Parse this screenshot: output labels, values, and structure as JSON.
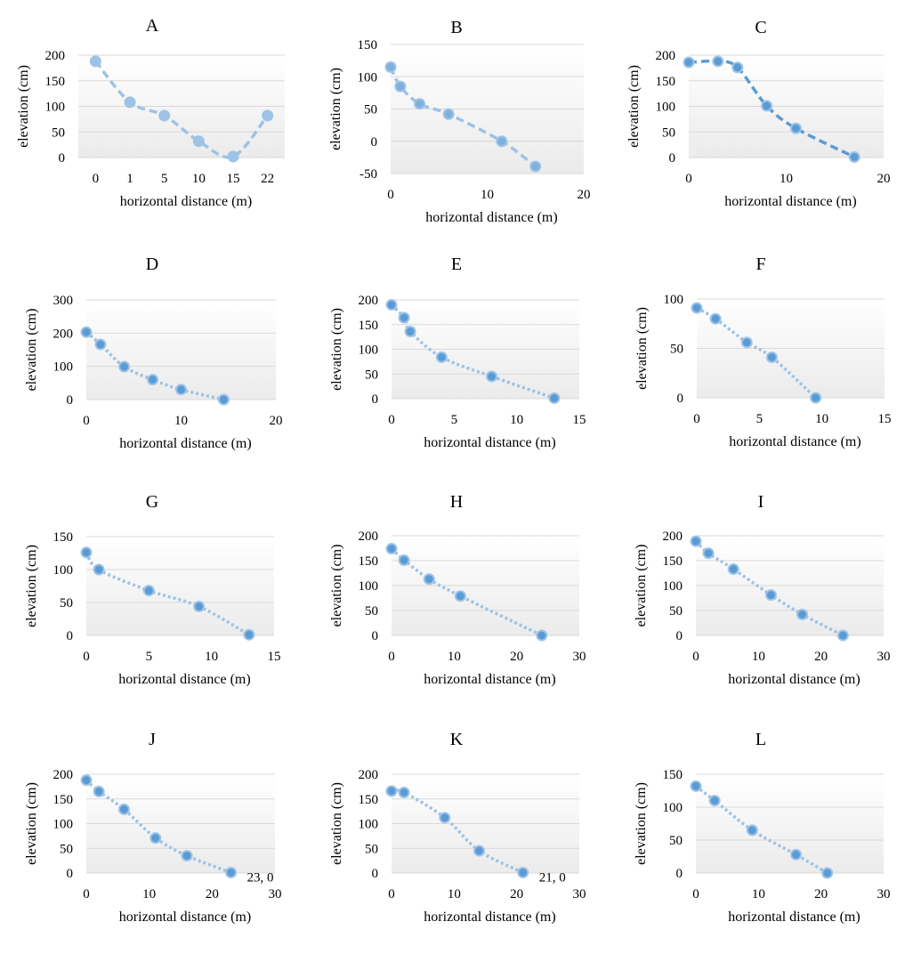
{
  "colors": {
    "series_dark": "#5b9bd5",
    "series_light": "#9dc3e6",
    "line_light": "#9dc3e6",
    "grid": "#d9d9d9",
    "plot_bg_top": "#ffffff",
    "plot_bg_bottom": "#ebebeb"
  },
  "chart_data": [
    {
      "id": "A",
      "type": "line",
      "title": "A",
      "xlabel": "horizontal  distance (m)",
      "ylabel": "elevation  (cm)",
      "x_mode": "category",
      "categories": [
        "0",
        "1",
        "5",
        "10",
        "15",
        "22"
      ],
      "series": [
        {
          "values": [
            188,
            108,
            82,
            32,
            2,
            82
          ]
        }
      ],
      "ylim": [
        0,
        200
      ],
      "yticks": [
        0,
        50,
        100,
        150,
        200
      ],
      "line_style": "dashed",
      "marker_style": "light",
      "grid": true
    },
    {
      "id": "B",
      "type": "scatter",
      "title": "B",
      "xlabel": "horizontal  distance (m)",
      "ylabel": "elevation  (cm)",
      "x_mode": "linear",
      "xlim": [
        0,
        20
      ],
      "xticks": [
        0,
        10,
        20
      ],
      "series": [
        {
          "x": [
            0,
            1,
            3,
            6,
            11.5,
            15
          ],
          "y": [
            115,
            85,
            58,
            42,
            0,
            -39
          ]
        }
      ],
      "ylim": [
        -50,
        150
      ],
      "yticks": [
        -50,
        0,
        50,
        100,
        150
      ],
      "line_style": "dashed",
      "marker_style": "mid",
      "grid": true
    },
    {
      "id": "C",
      "type": "scatter",
      "title": "C",
      "xlabel": "horizontal  distance (m)",
      "ylabel": "elevation  (cm)",
      "x_mode": "linear",
      "xlim": [
        0,
        20
      ],
      "xticks": [
        0,
        10,
        20
      ],
      "series": [
        {
          "x": [
            0,
            3,
            5,
            8,
            11,
            17
          ],
          "y": [
            186,
            188,
            176,
            101,
            57,
            1
          ]
        }
      ],
      "ylim": [
        0,
        200
      ],
      "yticks": [
        0,
        50,
        100,
        150,
        200
      ],
      "line_style": "dashed",
      "marker_style": "dark",
      "grid": true
    },
    {
      "id": "D",
      "type": "scatter",
      "title": "D",
      "xlabel": "horizontal  distance (m)",
      "ylabel": "elevation  (cm)",
      "x_mode": "linear",
      "xlim": [
        0,
        20
      ],
      "xticks": [
        0,
        10,
        20
      ],
      "series": [
        {
          "x": [
            0,
            1.5,
            4,
            7,
            10,
            14.5
          ],
          "y": [
            203,
            166,
            99,
            60,
            30,
            0
          ]
        }
      ],
      "ylim": [
        0,
        300
      ],
      "yticks": [
        0,
        100,
        200,
        300
      ],
      "line_style": "dotted",
      "marker_style": "dark",
      "grid": true
    },
    {
      "id": "E",
      "type": "scatter",
      "title": "E",
      "xlabel": "horizontal  distance (m)",
      "ylabel": "elevation  (cm)",
      "x_mode": "linear",
      "xlim": [
        0,
        15
      ],
      "xticks": [
        0,
        5,
        10,
        15
      ],
      "series": [
        {
          "x": [
            0,
            1,
            1.5,
            4,
            8,
            13
          ],
          "y": [
            190,
            164,
            136,
            84,
            45,
            1
          ]
        }
      ],
      "ylim": [
        0,
        200
      ],
      "yticks": [
        0,
        50,
        100,
        150,
        200
      ],
      "line_style": "dotted",
      "marker_style": "dark",
      "grid": true
    },
    {
      "id": "F",
      "type": "scatter",
      "title": "F",
      "xlabel": "horizontal  distance (m)",
      "ylabel": "elevation  (cm)",
      "x_mode": "linear",
      "xlim": [
        0,
        15
      ],
      "xticks": [
        0,
        5,
        10,
        15
      ],
      "series": [
        {
          "x": [
            0,
            1.5,
            4,
            6,
            9.5
          ],
          "y": [
            91,
            80,
            56,
            41,
            0
          ]
        }
      ],
      "ylim": [
        0,
        100
      ],
      "yticks": [
        0,
        50,
        100
      ],
      "line_style": "dotted",
      "marker_style": "dark",
      "grid": true
    },
    {
      "id": "G",
      "type": "scatter",
      "title": "G",
      "xlabel": "horizontal  distance (m)",
      "ylabel": "elevation  (cm)",
      "x_mode": "linear",
      "xlim": [
        0,
        15
      ],
      "xticks": [
        0,
        5,
        10,
        15
      ],
      "series": [
        {
          "x": [
            0,
            1,
            5,
            9,
            13
          ],
          "y": [
            126,
            100,
            68,
            44,
            1
          ]
        }
      ],
      "ylim": [
        0,
        150
      ],
      "yticks": [
        0,
        50,
        100,
        150
      ],
      "line_style": "dotted",
      "marker_style": "dark",
      "grid": true
    },
    {
      "id": "H",
      "type": "scatter",
      "title": "H",
      "xlabel": "horizontal  distance (m)",
      "ylabel": "elevation  (cm)",
      "x_mode": "linear",
      "xlim": [
        0,
        30
      ],
      "xticks": [
        0,
        10,
        20,
        30
      ],
      "series": [
        {
          "x": [
            0,
            2,
            6,
            11,
            24
          ],
          "y": [
            174,
            151,
            113,
            79,
            0
          ]
        }
      ],
      "ylim": [
        0,
        200
      ],
      "yticks": [
        0,
        50,
        100,
        150,
        200
      ],
      "line_style": "dotted",
      "marker_style": "dark",
      "grid": true
    },
    {
      "id": "I",
      "type": "scatter",
      "title": "I",
      "xlabel": "horizontal  distance (m)",
      "ylabel": "elevation  (cm)",
      "x_mode": "linear",
      "xlim": [
        0,
        30
      ],
      "xticks": [
        0,
        10,
        20,
        30
      ],
      "series": [
        {
          "x": [
            0,
            2,
            6,
            12,
            17,
            23.5
          ],
          "y": [
            189,
            165,
            133,
            81,
            42,
            0
          ]
        }
      ],
      "ylim": [
        0,
        200
      ],
      "yticks": [
        0,
        50,
        100,
        150,
        200
      ],
      "line_style": "dotted",
      "marker_style": "dark",
      "grid": true
    },
    {
      "id": "J",
      "type": "scatter",
      "title": "J",
      "xlabel": "horizontal  distance (m)",
      "ylabel": "elevation  (cm)",
      "x_mode": "linear",
      "xlim": [
        0,
        30
      ],
      "xticks": [
        0,
        10,
        20,
        30
      ],
      "series": [
        {
          "x": [
            0,
            2,
            6,
            11,
            16,
            23
          ],
          "y": [
            188,
            165,
            129,
            71,
            35,
            1
          ]
        }
      ],
      "ylim": [
        0,
        200
      ],
      "yticks": [
        0,
        50,
        100,
        150,
        200
      ],
      "annotations": [
        "23, 0"
      ],
      "line_style": "dotted",
      "marker_style": "dark",
      "grid": true
    },
    {
      "id": "K",
      "type": "scatter",
      "title": "K",
      "xlabel": "horizontal  distance (m)",
      "ylabel": "elevation  (cm)",
      "x_mode": "linear",
      "xlim": [
        0,
        30
      ],
      "xticks": [
        0,
        10,
        20,
        30
      ],
      "series": [
        {
          "x": [
            0,
            2,
            8.5,
            14,
            21
          ],
          "y": [
            166,
            163,
            112,
            45,
            1
          ]
        }
      ],
      "ylim": [
        0,
        200
      ],
      "yticks": [
        0,
        50,
        100,
        150,
        200
      ],
      "annotations": [
        "21, 0"
      ],
      "line_style": "dotted",
      "marker_style": "dark",
      "grid": true
    },
    {
      "id": "L",
      "type": "scatter",
      "title": "L",
      "xlabel": "horizontal  distance (m)",
      "ylabel": "elevation  (cm)",
      "x_mode": "linear",
      "xlim": [
        0,
        30
      ],
      "xticks": [
        0,
        10,
        20,
        30
      ],
      "series": [
        {
          "x": [
            0,
            3,
            9,
            16,
            21
          ],
          "y": [
            132,
            110,
            65,
            28,
            0
          ]
        }
      ],
      "ylim": [
        0,
        150
      ],
      "yticks": [
        0,
        50,
        100,
        150
      ],
      "line_style": "dotted",
      "marker_style": "dark",
      "grid": true
    }
  ]
}
